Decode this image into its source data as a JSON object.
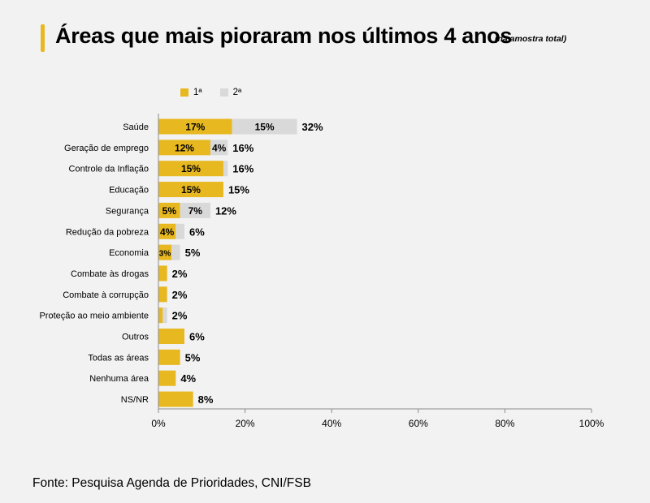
{
  "header": {
    "title": "Áreas que mais pioraram nos últimos 4 anos",
    "subtitle": "(na amostra total)"
  },
  "legend": {
    "items": [
      {
        "label": "1ª",
        "color": "#e8b820"
      },
      {
        "label": "2ª",
        "color": "#d9d9d9"
      }
    ]
  },
  "footer": {
    "source": "Fonte: Pesquisa Agenda de Prioridades, CNI/FSB"
  },
  "chart_data": {
    "type": "bar",
    "orientation": "horizontal",
    "stacked": true,
    "categories": [
      "Saúde",
      "Geração de emprego",
      "Controle da Inflação",
      "Educação",
      "Segurança",
      "Redução da pobreza",
      "Economia",
      "Combate às drogas",
      "Combate à corrupção",
      "Proteção ao meio ambiente",
      "Outros",
      "Todas as áreas",
      "Nenhuma área",
      "NS/NR"
    ],
    "series": [
      {
        "name": "1ª",
        "color": "#e8b820",
        "values": [
          17,
          12,
          15,
          15,
          5,
          4,
          3,
          2,
          2,
          1,
          6,
          5,
          4,
          8
        ],
        "labels": [
          "17%",
          "12%",
          "15%",
          "15%",
          "5%",
          "4%",
          "3%",
          null,
          null,
          null,
          null,
          null,
          null,
          null
        ]
      },
      {
        "name": "2ª",
        "color": "#d9d9d9",
        "values": [
          15,
          4,
          1,
          0,
          7,
          2,
          2,
          0,
          0,
          1,
          0,
          0,
          0,
          0
        ],
        "labels": [
          "15%",
          "4%",
          null,
          null,
          "7%",
          null,
          null,
          null,
          null,
          null,
          null,
          null,
          null,
          null
        ]
      }
    ],
    "totals": [
      32,
      16,
      16,
      15,
      12,
      6,
      5,
      2,
      2,
      2,
      6,
      5,
      4,
      8
    ],
    "total_labels": [
      "32%",
      "16%",
      "16%",
      "15%",
      "12%",
      "6%",
      "5%",
      "2%",
      "2%",
      "2%",
      "6%",
      "5%",
      "4%",
      "8%"
    ],
    "xlim": [
      0,
      100
    ],
    "x_ticks": [
      0,
      20,
      40,
      60,
      80,
      100
    ],
    "x_tick_labels": [
      "0%",
      "20%",
      "40%",
      "60%",
      "80%",
      "100%"
    ],
    "grid": false,
    "legend_position": "top-left"
  }
}
